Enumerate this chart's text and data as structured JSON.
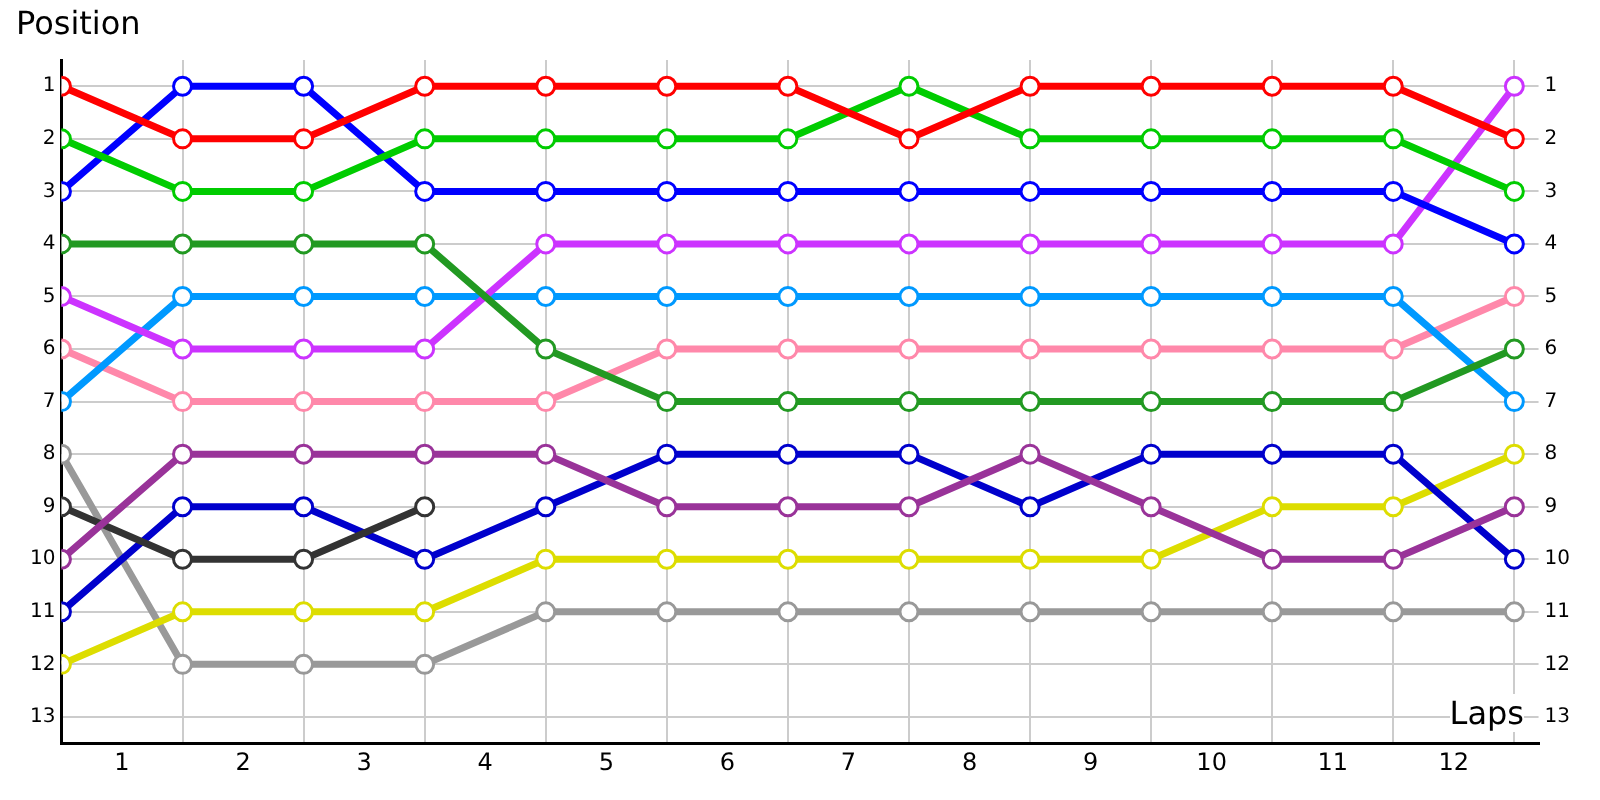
{
  "chart_data": {
    "type": "line",
    "xlabel": "Laps",
    "ylabel": "Position",
    "x": [
      0,
      1,
      2,
      3,
      4,
      5,
      6,
      7,
      8,
      9,
      10,
      11,
      12
    ],
    "xlim": [
      0,
      12.2
    ],
    "xticks": [
      {
        "value": 0,
        "label": null
      },
      {
        "value": 0.5,
        "label": "1"
      },
      {
        "value": 1,
        "label": null
      },
      {
        "value": 1.5,
        "label": "2"
      },
      {
        "value": 2,
        "label": null
      },
      {
        "value": 2.5,
        "label": "3"
      },
      {
        "value": 3,
        "label": null
      },
      {
        "value": 3.5,
        "label": "4"
      },
      {
        "value": 4,
        "label": null
      },
      {
        "value": 4.5,
        "label": "5"
      },
      {
        "value": 5,
        "label": null
      },
      {
        "value": 5.5,
        "label": "6"
      },
      {
        "value": 6,
        "label": null
      },
      {
        "value": 6.5,
        "label": "7"
      },
      {
        "value": 7,
        "label": null
      },
      {
        "value": 7.5,
        "label": "8"
      },
      {
        "value": 8,
        "label": null
      },
      {
        "value": 8.5,
        "label": "9"
      },
      {
        "value": 9,
        "label": null
      },
      {
        "value": 9.5,
        "label": "10"
      },
      {
        "value": 10,
        "label": null
      },
      {
        "value": 10.5,
        "label": "11"
      },
      {
        "value": 11,
        "label": null
      },
      {
        "value": 11.5,
        "label": "12"
      },
      {
        "value": 12,
        "label": null
      }
    ],
    "ylim": [
      13.5,
      0.5
    ],
    "yticks": [
      1,
      2,
      3,
      4,
      5,
      6,
      7,
      8,
      9,
      10,
      11,
      12,
      13
    ],
    "y2lim": [
      13.5,
      0.5
    ],
    "y2ticks": [
      1,
      2,
      3,
      4,
      5,
      6,
      7,
      8,
      9,
      10,
      11,
      12,
      13
    ],
    "grid": true,
    "legend": false,
    "marker": "circle",
    "line_style": "solid",
    "series": [
      {
        "color": "#ff0000",
        "values": [
          1,
          2,
          2,
          1,
          1,
          1,
          1,
          2,
          1,
          1,
          1,
          1,
          2
        ]
      },
      {
        "color": "#00cc00",
        "values": [
          2,
          3,
          3,
          2,
          2,
          2,
          2,
          1,
          2,
          2,
          2,
          2,
          3
        ]
      },
      {
        "color": "#0000ff",
        "values": [
          3,
          1,
          1,
          3,
          3,
          3,
          3,
          3,
          3,
          3,
          3,
          3,
          4
        ]
      },
      {
        "color": "#229922",
        "values": [
          4,
          4,
          4,
          4,
          6,
          7,
          7,
          7,
          7,
          7,
          7,
          7,
          6
        ]
      },
      {
        "color": "#cc33ff",
        "values": [
          5,
          6,
          6,
          6,
          4,
          4,
          4,
          4,
          4,
          4,
          4,
          4,
          1
        ]
      },
      {
        "color": "#0099ff",
        "values": [
          7,
          5,
          5,
          5,
          5,
          5,
          5,
          5,
          5,
          5,
          5,
          5,
          7
        ]
      },
      {
        "color": "#ff88aa",
        "values": [
          6,
          7,
          7,
          7,
          7,
          6,
          6,
          6,
          6,
          6,
          6,
          6,
          5
        ]
      },
      {
        "color": "#993399",
        "values": [
          10,
          8,
          8,
          8,
          8,
          9,
          9,
          9,
          8,
          9,
          10,
          10,
          9
        ]
      },
      {
        "color": "#333333",
        "values": [
          9,
          10,
          10,
          9,
          null,
          null,
          null,
          null,
          null,
          null,
          null,
          null,
          null
        ]
      },
      {
        "color": "#0000cc",
        "values": [
          11,
          9,
          9,
          10,
          9,
          8,
          8,
          8,
          9,
          8,
          8,
          8,
          10
        ]
      },
      {
        "color": "#dddd00",
        "values": [
          12,
          11,
          11,
          11,
          10,
          10,
          10,
          10,
          10,
          10,
          9,
          9,
          8
        ]
      },
      {
        "color": "#999999",
        "values": [
          8,
          12,
          12,
          12,
          11,
          11,
          11,
          11,
          11,
          11,
          11,
          11,
          11
        ]
      }
    ]
  }
}
